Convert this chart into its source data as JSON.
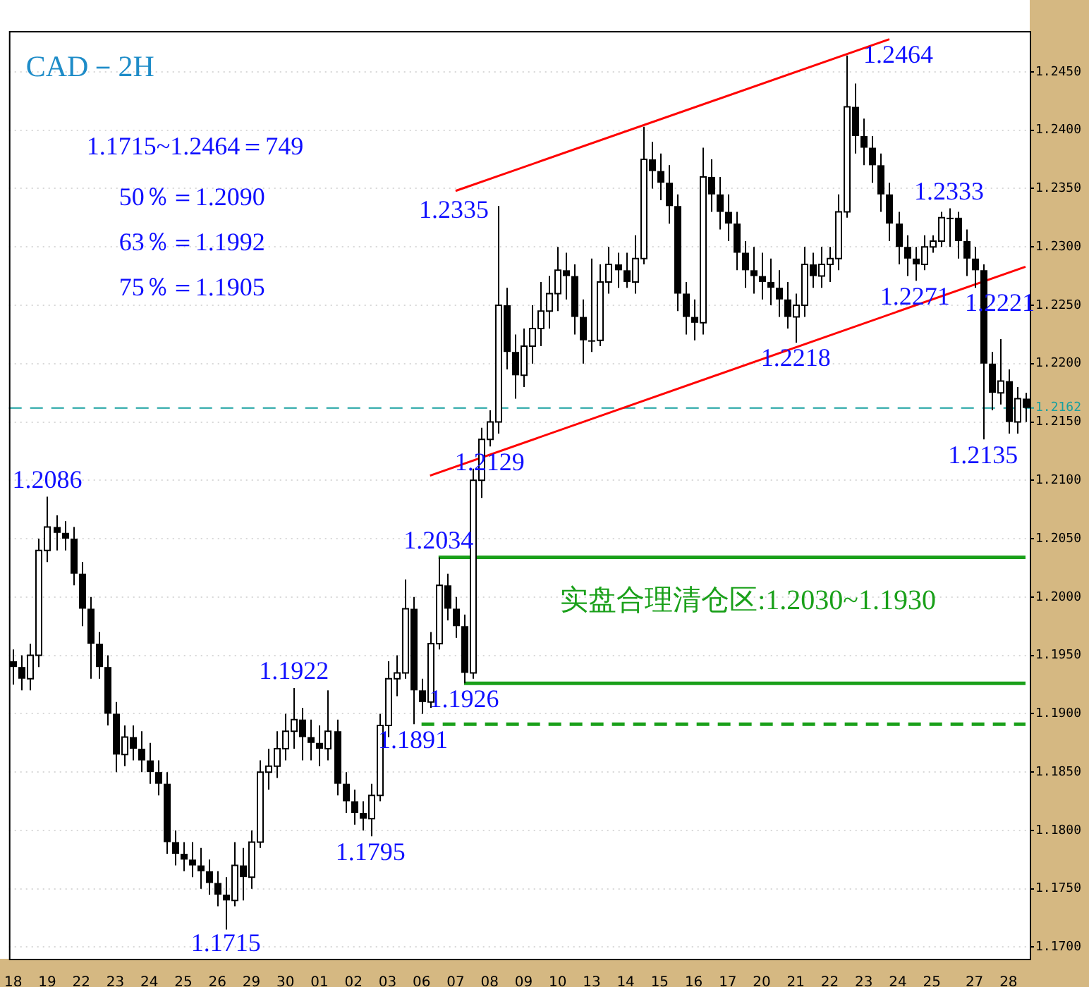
{
  "chart_data": {
    "type": "candlestick",
    "title": "CAD－2H",
    "categories": [
      "18",
      null,
      null,
      null,
      "19",
      null,
      null,
      null,
      "22",
      null,
      null,
      null,
      "23",
      null,
      null,
      null,
      "24",
      null,
      null,
      null,
      "25",
      null,
      null,
      null,
      "26",
      null,
      null,
      null,
      "29",
      null,
      null,
      null,
      "30",
      null,
      null,
      null,
      "01",
      null,
      null,
      null,
      "02",
      null,
      null,
      null,
      "03",
      null,
      null,
      null,
      "06",
      null,
      null,
      null,
      "07",
      null,
      null,
      null,
      "08",
      null,
      null,
      null,
      "09",
      null,
      null,
      null,
      "10",
      null,
      null,
      null,
      "13",
      null,
      null,
      null,
      "14",
      null,
      null,
      null,
      "15",
      null,
      null,
      null,
      "16",
      null,
      null,
      null,
      "17",
      null,
      null,
      null,
      "20",
      null,
      null,
      null,
      "21",
      null,
      null,
      null,
      "22",
      null,
      null,
      null,
      "23",
      null,
      null,
      null,
      "24",
      null,
      null,
      null,
      "25",
      null,
      null,
      null,
      null,
      "27",
      null,
      null,
      null,
      "28",
      null,
      null
    ],
    "ohlc": [
      [
        1.1945,
        1.1955,
        1.1925,
        1.194
      ],
      [
        1.194,
        1.195,
        1.192,
        1.193
      ],
      [
        1.193,
        1.196,
        1.192,
        1.195
      ],
      [
        1.195,
        1.205,
        1.194,
        1.204
      ],
      [
        1.204,
        1.2086,
        1.203,
        1.206
      ],
      [
        1.206,
        1.207,
        1.204,
        1.2055
      ],
      [
        1.2055,
        1.2065,
        1.204,
        1.205
      ],
      [
        1.205,
        1.206,
        1.201,
        1.202
      ],
      [
        1.202,
        1.203,
        1.1975,
        1.199
      ],
      [
        1.199,
        1.2,
        1.193,
        1.196
      ],
      [
        1.196,
        1.197,
        1.193,
        1.194
      ],
      [
        1.194,
        1.195,
        1.189,
        1.19
      ],
      [
        1.19,
        1.191,
        1.185,
        1.1865
      ],
      [
        1.1865,
        1.189,
        1.1855,
        1.188
      ],
      [
        1.188,
        1.189,
        1.186,
        1.187
      ],
      [
        1.187,
        1.1885,
        1.185,
        1.186
      ],
      [
        1.186,
        1.1875,
        1.184,
        1.185
      ],
      [
        1.185,
        1.186,
        1.183,
        1.184
      ],
      [
        1.184,
        1.185,
        1.178,
        1.179
      ],
      [
        1.179,
        1.18,
        1.177,
        1.178
      ],
      [
        1.178,
        1.179,
        1.1765,
        1.1775
      ],
      [
        1.1775,
        1.179,
        1.176,
        1.177
      ],
      [
        1.177,
        1.1785,
        1.175,
        1.1765
      ],
      [
        1.1765,
        1.1775,
        1.1745,
        1.1755
      ],
      [
        1.1755,
        1.1765,
        1.1735,
        1.1745
      ],
      [
        1.1745,
        1.176,
        1.1715,
        1.174
      ],
      [
        1.174,
        1.179,
        1.1735,
        1.177
      ],
      [
        1.177,
        1.1785,
        1.174,
        1.176
      ],
      [
        1.176,
        1.18,
        1.175,
        1.179
      ],
      [
        1.179,
        1.186,
        1.1785,
        1.185
      ],
      [
        1.185,
        1.187,
        1.1835,
        1.1855
      ],
      [
        1.1855,
        1.1885,
        1.1845,
        1.187
      ],
      [
        1.187,
        1.19,
        1.186,
        1.1885
      ],
      [
        1.1885,
        1.1922,
        1.187,
        1.1895
      ],
      [
        1.1895,
        1.1905,
        1.186,
        1.188
      ],
      [
        1.188,
        1.1895,
        1.186,
        1.1875
      ],
      [
        1.1875,
        1.189,
        1.1855,
        1.187
      ],
      [
        1.187,
        1.192,
        1.186,
        1.1885
      ],
      [
        1.1885,
        1.1895,
        1.183,
        1.184
      ],
      [
        1.184,
        1.185,
        1.1815,
        1.1825
      ],
      [
        1.1825,
        1.1835,
        1.1805,
        1.1815
      ],
      [
        1.1815,
        1.1825,
        1.18,
        1.181
      ],
      [
        1.181,
        1.184,
        1.1795,
        1.183
      ],
      [
        1.183,
        1.19,
        1.1825,
        1.189
      ],
      [
        1.189,
        1.1945,
        1.188,
        1.193
      ],
      [
        1.193,
        1.195,
        1.1915,
        1.1935
      ],
      [
        1.1935,
        1.2015,
        1.193,
        1.199
      ],
      [
        1.199,
        1.2,
        1.1891,
        1.192
      ],
      [
        1.192,
        1.193,
        1.19,
        1.191
      ],
      [
        1.191,
        1.197,
        1.1905,
        1.196
      ],
      [
        1.196,
        1.2034,
        1.1955,
        1.201
      ],
      [
        1.201,
        1.202,
        1.198,
        1.199
      ],
      [
        1.199,
        1.2,
        1.1965,
        1.1975
      ],
      [
        1.1975,
        1.1985,
        1.1926,
        1.1935
      ],
      [
        1.1935,
        1.211,
        1.193,
        1.21
      ],
      [
        1.21,
        1.2145,
        1.2085,
        1.2135
      ],
      [
        1.2135,
        1.216,
        1.2129,
        1.215
      ],
      [
        1.215,
        1.2335,
        1.214,
        1.225
      ],
      [
        1.225,
        1.2265,
        1.2195,
        1.221
      ],
      [
        1.221,
        1.2225,
        1.217,
        1.219
      ],
      [
        1.219,
        1.223,
        1.218,
        1.2215
      ],
      [
        1.2215,
        1.225,
        1.22,
        1.223
      ],
      [
        1.223,
        1.227,
        1.2215,
        1.2245
      ],
      [
        1.2245,
        1.2275,
        1.223,
        1.226
      ],
      [
        1.226,
        1.23,
        1.2245,
        1.228
      ],
      [
        1.228,
        1.2295,
        1.2255,
        1.2275
      ],
      [
        1.2275,
        1.2285,
        1.2225,
        1.224
      ],
      [
        1.224,
        1.2255,
        1.22,
        1.222
      ],
      [
        1.222,
        1.229,
        1.221,
        1.222
      ],
      [
        1.222,
        1.2285,
        1.2215,
        1.227
      ],
      [
        1.227,
        1.23,
        1.226,
        1.2285
      ],
      [
        1.2285,
        1.2295,
        1.2265,
        1.228
      ],
      [
        1.228,
        1.2295,
        1.2265,
        1.227
      ],
      [
        1.227,
        1.231,
        1.226,
        1.229
      ],
      [
        1.229,
        1.2403,
        1.2285,
        1.2375
      ],
      [
        1.2375,
        1.239,
        1.235,
        1.2365
      ],
      [
        1.2365,
        1.238,
        1.234,
        1.2355
      ],
      [
        1.2355,
        1.237,
        1.232,
        1.2335
      ],
      [
        1.2335,
        1.2345,
        1.2245,
        1.226
      ],
      [
        1.226,
        1.227,
        1.2225,
        1.224
      ],
      [
        1.224,
        1.2255,
        1.222,
        1.2235
      ],
      [
        1.2235,
        1.2385,
        1.2225,
        1.236
      ],
      [
        1.236,
        1.2375,
        1.233,
        1.2345
      ],
      [
        1.2345,
        1.236,
        1.2315,
        1.233
      ],
      [
        1.233,
        1.2345,
        1.2305,
        1.232
      ],
      [
        1.232,
        1.233,
        1.228,
        1.2295
      ],
      [
        1.2295,
        1.2305,
        1.2265,
        1.228
      ],
      [
        1.228,
        1.23,
        1.226,
        1.2275
      ],
      [
        1.2275,
        1.2295,
        1.2255,
        1.227
      ],
      [
        1.227,
        1.229,
        1.225,
        1.2265
      ],
      [
        1.2265,
        1.228,
        1.224,
        1.2255
      ],
      [
        1.2255,
        1.227,
        1.223,
        1.224
      ],
      [
        1.224,
        1.226,
        1.2218,
        1.225
      ],
      [
        1.225,
        1.23,
        1.224,
        1.2285
      ],
      [
        1.2285,
        1.2295,
        1.2265,
        1.2275
      ],
      [
        1.2275,
        1.23,
        1.2265,
        1.2285
      ],
      [
        1.2285,
        1.23,
        1.227,
        1.229
      ],
      [
        1.229,
        1.2345,
        1.228,
        1.233
      ],
      [
        1.233,
        1.2464,
        1.2325,
        1.242
      ],
      [
        1.242,
        1.244,
        1.238,
        1.2395
      ],
      [
        1.2395,
        1.241,
        1.237,
        1.2385
      ],
      [
        1.2385,
        1.2395,
        1.2355,
        1.237
      ],
      [
        1.237,
        1.238,
        1.233,
        1.2345
      ],
      [
        1.2345,
        1.2355,
        1.2305,
        1.232
      ],
      [
        1.232,
        1.233,
        1.2285,
        1.23
      ],
      [
        1.23,
        1.231,
        1.2275,
        1.229
      ],
      [
        1.229,
        1.23,
        1.2271,
        1.2285
      ],
      [
        1.2285,
        1.231,
        1.228,
        1.23
      ],
      [
        1.23,
        1.231,
        1.2295,
        1.2305
      ],
      [
        1.2305,
        1.233,
        1.23,
        1.2325
      ],
      [
        1.2325,
        1.2333,
        1.23,
        1.2325
      ],
      [
        1.2325,
        1.233,
        1.229,
        1.2305
      ],
      [
        1.2305,
        1.2315,
        1.2275,
        1.229
      ],
      [
        1.229,
        1.23,
        1.2265,
        1.228
      ],
      [
        1.228,
        1.2285,
        1.2135,
        1.22
      ],
      [
        1.22,
        1.221,
        1.216,
        1.2175
      ],
      [
        1.2175,
        1.2221,
        1.2165,
        1.2185
      ],
      [
        1.2185,
        1.2195,
        1.214,
        1.215
      ],
      [
        1.215,
        1.218,
        1.214,
        1.217
      ],
      [
        1.217,
        1.2175,
        1.215,
        1.2162
      ]
    ],
    "series": [
      {
        "type": "line",
        "color": "#ff0000",
        "values": [
          null,
          null,
          null,
          null,
          null,
          null,
          null,
          null,
          null,
          null,
          null,
          null,
          null,
          null,
          null,
          null,
          null,
          null,
          null,
          null,
          null,
          null,
          null,
          null,
          null,
          null,
          null,
          null,
          null,
          null,
          null,
          null,
          null,
          null,
          null,
          null,
          null,
          null,
          null,
          null,
          null,
          null,
          null,
          null,
          null,
          null,
          null,
          null,
          null,
          null,
          null,
          null,
          1.2348,
          null,
          null,
          null,
          null,
          null,
          null,
          null,
          null,
          null,
          null,
          null,
          null,
          null,
          null,
          null,
          null,
          null,
          null,
          null,
          null,
          null,
          null,
          null,
          null,
          null,
          null,
          null,
          null,
          null,
          null,
          null,
          null,
          null,
          null,
          null,
          null,
          null,
          null,
          null,
          null,
          null,
          null,
          null,
          null,
          null,
          null,
          null,
          null,
          null,
          null,
          1.2478,
          null,
          null,
          null,
          null,
          null,
          null,
          null,
          null,
          null,
          null,
          null,
          null,
          null,
          null,
          null,
          null
        ]
      },
      {
        "type": "line",
        "color": "#ff0000",
        "values": [
          null,
          null,
          null,
          null,
          null,
          null,
          null,
          null,
          null,
          null,
          null,
          null,
          null,
          null,
          null,
          null,
          null,
          null,
          null,
          null,
          null,
          null,
          null,
          null,
          null,
          null,
          null,
          null,
          null,
          null,
          null,
          null,
          null,
          null,
          null,
          null,
          null,
          null,
          null,
          null,
          null,
          null,
          null,
          null,
          null,
          null,
          null,
          null,
          null,
          1.2104,
          null,
          null,
          null,
          null,
          null,
          null,
          null,
          null,
          null,
          null,
          null,
          null,
          null,
          null,
          null,
          null,
          null,
          null,
          null,
          null,
          null,
          null,
          null,
          null,
          null,
          null,
          null,
          null,
          null,
          null,
          null,
          null,
          null,
          null,
          null,
          null,
          null,
          null,
          null,
          null,
          null,
          null,
          null,
          null,
          null,
          null,
          null,
          null,
          null,
          null,
          null,
          null,
          null,
          null,
          null,
          null,
          null,
          null,
          null,
          null,
          null,
          null,
          null,
          null,
          null,
          null,
          null,
          null,
          null,
          1.2283
        ]
      },
      {
        "type": "line",
        "color": "#1aa01a",
        "values": [
          null,
          null,
          null,
          null,
          null,
          null,
          null,
          null,
          null,
          null,
          null,
          null,
          null,
          null,
          null,
          null,
          null,
          null,
          null,
          null,
          null,
          null,
          null,
          null,
          null,
          null,
          null,
          null,
          null,
          null,
          null,
          null,
          null,
          null,
          null,
          null,
          null,
          null,
          null,
          null,
          null,
          null,
          null,
          null,
          null,
          null,
          null,
          null,
          null,
          null,
          1.2034,
          null,
          null,
          null,
          null,
          null,
          null,
          null,
          null,
          null,
          null,
          null,
          null,
          null,
          null,
          null,
          null,
          null,
          null,
          null,
          null,
          null,
          null,
          null,
          null,
          null,
          null,
          null,
          null,
          null,
          null,
          null,
          null,
          null,
          null,
          null,
          null,
          null,
          null,
          null,
          null,
          null,
          null,
          null,
          null,
          null,
          null,
          null,
          null,
          null,
          null,
          null,
          null,
          null,
          null,
          null,
          null,
          null,
          null,
          null,
          null,
          null,
          null,
          null,
          null,
          null,
          null,
          null,
          null,
          1.2034
        ]
      },
      {
        "type": "line",
        "color": "#1aa01a",
        "values": [
          null,
          null,
          null,
          null,
          null,
          null,
          null,
          null,
          null,
          null,
          null,
          null,
          null,
          null,
          null,
          null,
          null,
          null,
          null,
          null,
          null,
          null,
          null,
          null,
          null,
          null,
          null,
          null,
          null,
          null,
          null,
          null,
          null,
          null,
          null,
          null,
          null,
          null,
          null,
          null,
          null,
          null,
          null,
          null,
          null,
          null,
          null,
          null,
          null,
          null,
          null,
          null,
          null,
          1.1926,
          null,
          null,
          null,
          null,
          null,
          null,
          null,
          null,
          null,
          null,
          null,
          null,
          null,
          null,
          null,
          null,
          null,
          null,
          null,
          null,
          null,
          null,
          null,
          null,
          null,
          null,
          null,
          null,
          null,
          null,
          null,
          null,
          null,
          null,
          null,
          null,
          null,
          null,
          null,
          null,
          null,
          null,
          null,
          null,
          null,
          null,
          null,
          null,
          null,
          null,
          null,
          null,
          null,
          null,
          null,
          null,
          null,
          null,
          null,
          null,
          null,
          null,
          null,
          null,
          null,
          1.1926
        ]
      },
      {
        "type": "line",
        "color": "#1aa01a",
        "line_style": "dashed",
        "values": [
          null,
          null,
          null,
          null,
          null,
          null,
          null,
          null,
          null,
          null,
          null,
          null,
          null,
          null,
          null,
          null,
          null,
          null,
          null,
          null,
          null,
          null,
          null,
          null,
          null,
          null,
          null,
          null,
          null,
          null,
          null,
          null,
          null,
          null,
          null,
          null,
          null,
          null,
          null,
          null,
          null,
          null,
          null,
          null,
          null,
          null,
          null,
          null,
          1.1891,
          null,
          null,
          null,
          null,
          null,
          null,
          null,
          null,
          null,
          null,
          null,
          null,
          null,
          null,
          null,
          null,
          null,
          null,
          null,
          null,
          null,
          null,
          null,
          null,
          null,
          null,
          null,
          null,
          null,
          null,
          null,
          null,
          null,
          null,
          null,
          null,
          null,
          null,
          null,
          null,
          null,
          null,
          null,
          null,
          null,
          null,
          null,
          null,
          null,
          null,
          null,
          null,
          null,
          null,
          null,
          null,
          null,
          null,
          null,
          null,
          null,
          null,
          null,
          null,
          null,
          null,
          null,
          null,
          null,
          null,
          1.1891
        ]
      }
    ],
    "ylim": [
      1.169,
      1.2485
    ],
    "yticks": [
      {
        "value": 1.17,
        "label": "1.1700"
      },
      {
        "value": 1.175,
        "label": "1.1750"
      },
      {
        "value": 1.18,
        "label": "1.1800"
      },
      {
        "value": 1.185,
        "label": "1.1850"
      },
      {
        "value": 1.19,
        "label": "1.1900"
      },
      {
        "value": 1.195,
        "label": "1.1950"
      },
      {
        "value": 1.2,
        "label": "1.2000"
      },
      {
        "value": 1.205,
        "label": "1.2050"
      },
      {
        "value": 1.21,
        "label": "1.2100"
      },
      {
        "value": 1.215,
        "label": "1.2150"
      },
      {
        "value": 1.22,
        "label": "1.2200"
      },
      {
        "value": 1.225,
        "label": "1.2250"
      },
      {
        "value": 1.23,
        "label": "1.2300"
      },
      {
        "value": 1.235,
        "label": "1.2350"
      },
      {
        "value": 1.24,
        "label": "1.2400"
      },
      {
        "value": 1.245,
        "label": "1.2450"
      }
    ],
    "grid": "y",
    "ref_lines": [
      {
        "axis": "y",
        "value": 1.2162,
        "label": "1.2162",
        "color": "#17a0a0",
        "line_style": "dashed"
      }
    ],
    "annotations": [
      "1.1715~1.2464＝749",
      "50％＝1.2090",
      "63％＝1.1992",
      "75％＝1.1905",
      "实盘合理清仓区:1.2030~1.1930",
      "1.2335",
      "1.2464",
      "1.2221",
      {
        "text": "1.2086",
        "y": 1.2086
      },
      {
        "text": "1.1922",
        "y": 1.1922
      },
      {
        "text": "1.1715",
        "y": 1.1715
      },
      {
        "text": "1.1795",
        "y": 1.1795
      },
      {
        "text": "1.1891",
        "y": 1.1891
      },
      {
        "text": "1.2034",
        "y": 1.2034
      },
      {
        "text": "1.1926",
        "y": 1.1926
      },
      {
        "text": "1.2129",
        "y": 1.2129
      },
      {
        "text": "1.2218",
        "y": 1.2218
      },
      {
        "text": "1.2333",
        "y": 1.2333
      },
      {
        "text": "1.2271",
        "y": 1.2271
      },
      {
        "text": "1.2135",
        "y": 1.2135
      }
    ]
  }
}
